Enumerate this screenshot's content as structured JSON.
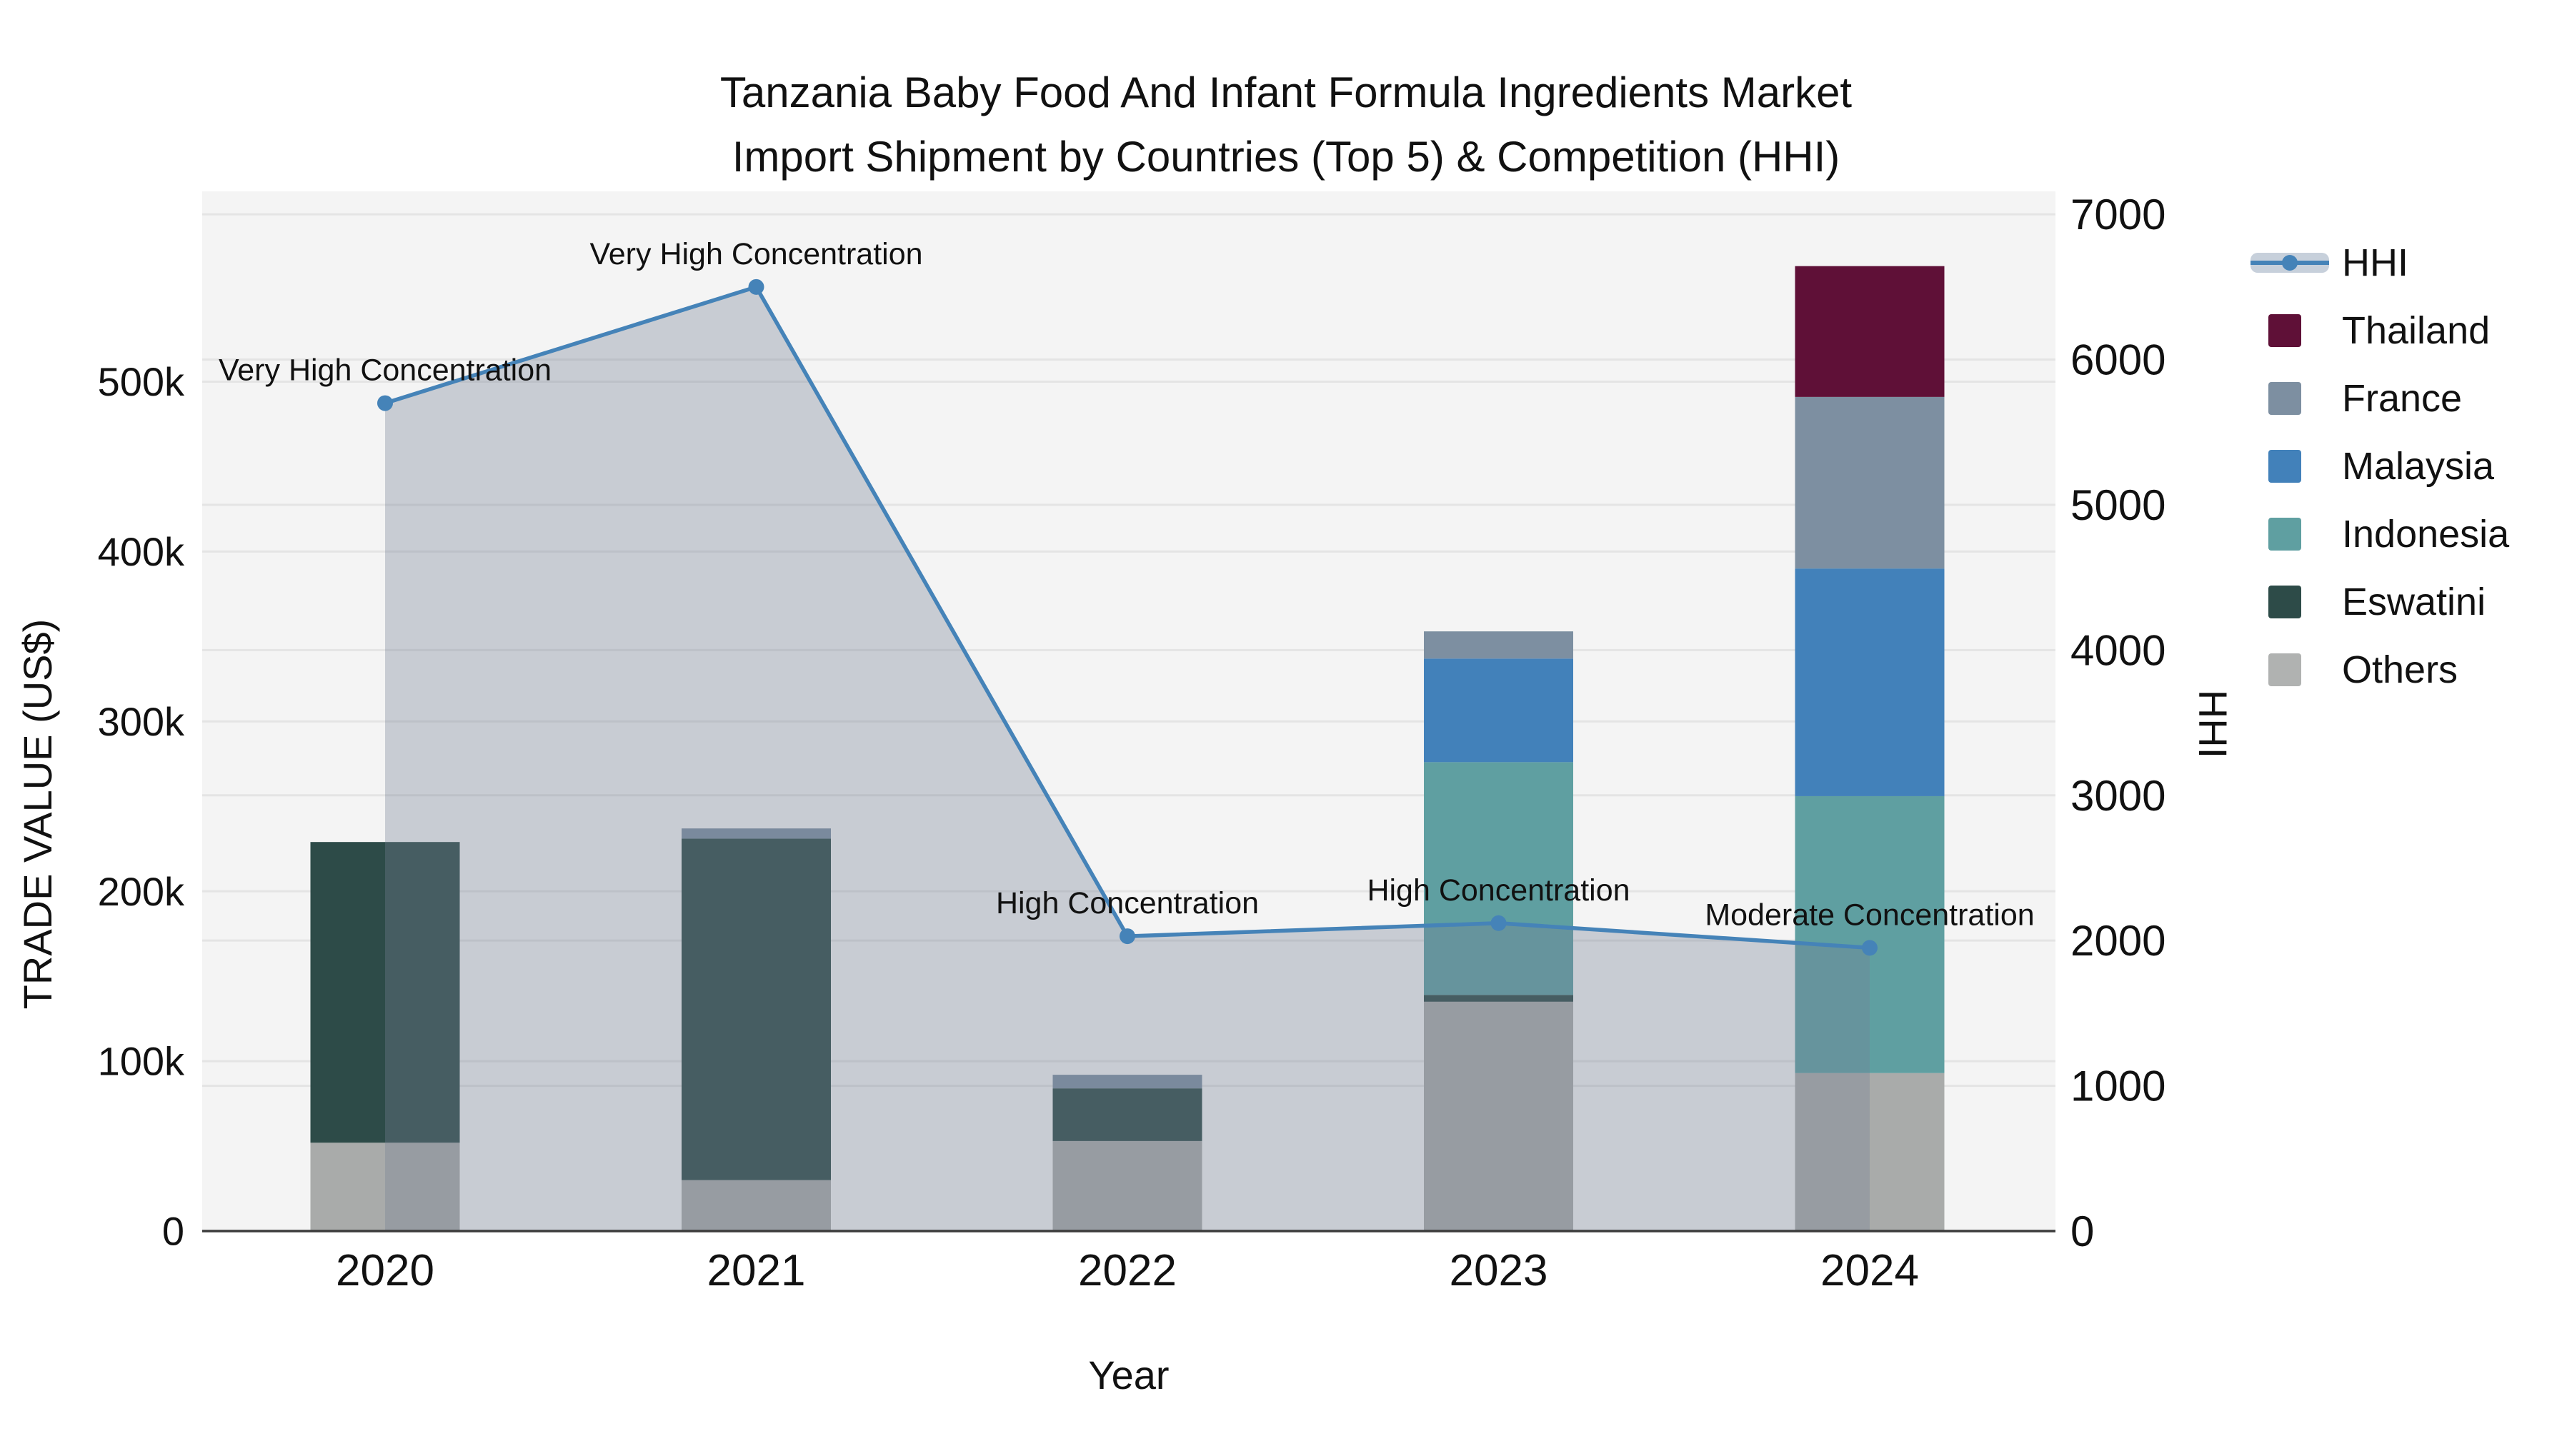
{
  "title": {
    "line1": "Tanzania Baby Food And Infant Formula Ingredients Market",
    "line2": "Import Shipment by Countries (Top 5) & Competition (HHI)"
  },
  "axes": {
    "x": {
      "title": "Year",
      "tick_labels": [
        "2020",
        "2021",
        "2022",
        "2023",
        "2024"
      ]
    },
    "y_left": {
      "title": "TRADE VALUE (US$)",
      "tick_labels": [
        "0",
        "100k",
        "200k",
        "300k",
        "400k",
        "500k"
      ],
      "tick_values": [
        0,
        100000,
        200000,
        300000,
        400000,
        500000
      ],
      "range": [
        0,
        612000
      ]
    },
    "y_right": {
      "title": "HHI",
      "tick_labels": [
        "0",
        "1000",
        "2000",
        "3000",
        "4000",
        "5000",
        "6000",
        "7000"
      ],
      "tick_values": [
        0,
        1000,
        2000,
        3000,
        4000,
        5000,
        6000,
        7000
      ],
      "range": [
        0,
        7158
      ]
    }
  },
  "legend": {
    "items": [
      {
        "label": "HHI",
        "type": "line",
        "color": "#4583b8"
      },
      {
        "label": "Thailand",
        "type": "swatch",
        "color": "#5f1037"
      },
      {
        "label": "France",
        "type": "swatch",
        "color": "#7d8fa1"
      },
      {
        "label": "Malaysia",
        "type": "swatch",
        "color": "#4281ba"
      },
      {
        "label": "Indonesia",
        "type": "swatch",
        "color": "#5f9fa1"
      },
      {
        "label": "Eswatini",
        "type": "swatch",
        "color": "#2d4b48"
      },
      {
        "label": "Others",
        "type": "swatch",
        "color": "#b0b2b1"
      }
    ]
  },
  "chart_data": {
    "type": "combo-stacked-bar-line",
    "categories": [
      "2020",
      "2021",
      "2022",
      "2023",
      "2024"
    ],
    "bar_series": [
      {
        "name": "Others",
        "color": "#a9abaa",
        "values": [
          52000,
          30000,
          53000,
          135000,
          93000
        ]
      },
      {
        "name": "Eswatini",
        "color": "#2d4b48",
        "values": [
          177000,
          201000,
          31000,
          4000,
          0
        ]
      },
      {
        "name": "Indonesia",
        "color": "#5f9fa1",
        "values": [
          0,
          0,
          0,
          137000,
          163000
        ]
      },
      {
        "name": "Malaysia",
        "color": "#4281ba",
        "values": [
          0,
          0,
          0,
          61000,
          134000
        ]
      },
      {
        "name": "France",
        "color": "#7d8fa1",
        "values": [
          0,
          6000,
          8000,
          16000,
          101000
        ]
      },
      {
        "name": "Thailand",
        "color": "#5f1037",
        "values": [
          0,
          0,
          0,
          0,
          77000
        ]
      }
    ],
    "bar_totals": [
      229000,
      237000,
      92000,
      353000,
      568000
    ],
    "line_series": {
      "name": "HHI",
      "color": "#4583b8",
      "area_fill": "rgba(118,130,150,0.35)",
      "values": [
        5700,
        6500,
        2030,
        2120,
        1950
      ]
    },
    "annotations": [
      "Very High Concentration",
      "Very High Concentration",
      "High Concentration",
      "High Concentration",
      "Moderate Concentration"
    ],
    "layout": {
      "grid": true,
      "legend_position": "top-right",
      "bar_gap_ratio": 0.6
    }
  },
  "colors": {
    "background": "#ffffff",
    "plot_background": "#f4f4f4",
    "gridline": "#e4e4e4",
    "axis_line": "#3c3c3c",
    "text": "#111111"
  }
}
